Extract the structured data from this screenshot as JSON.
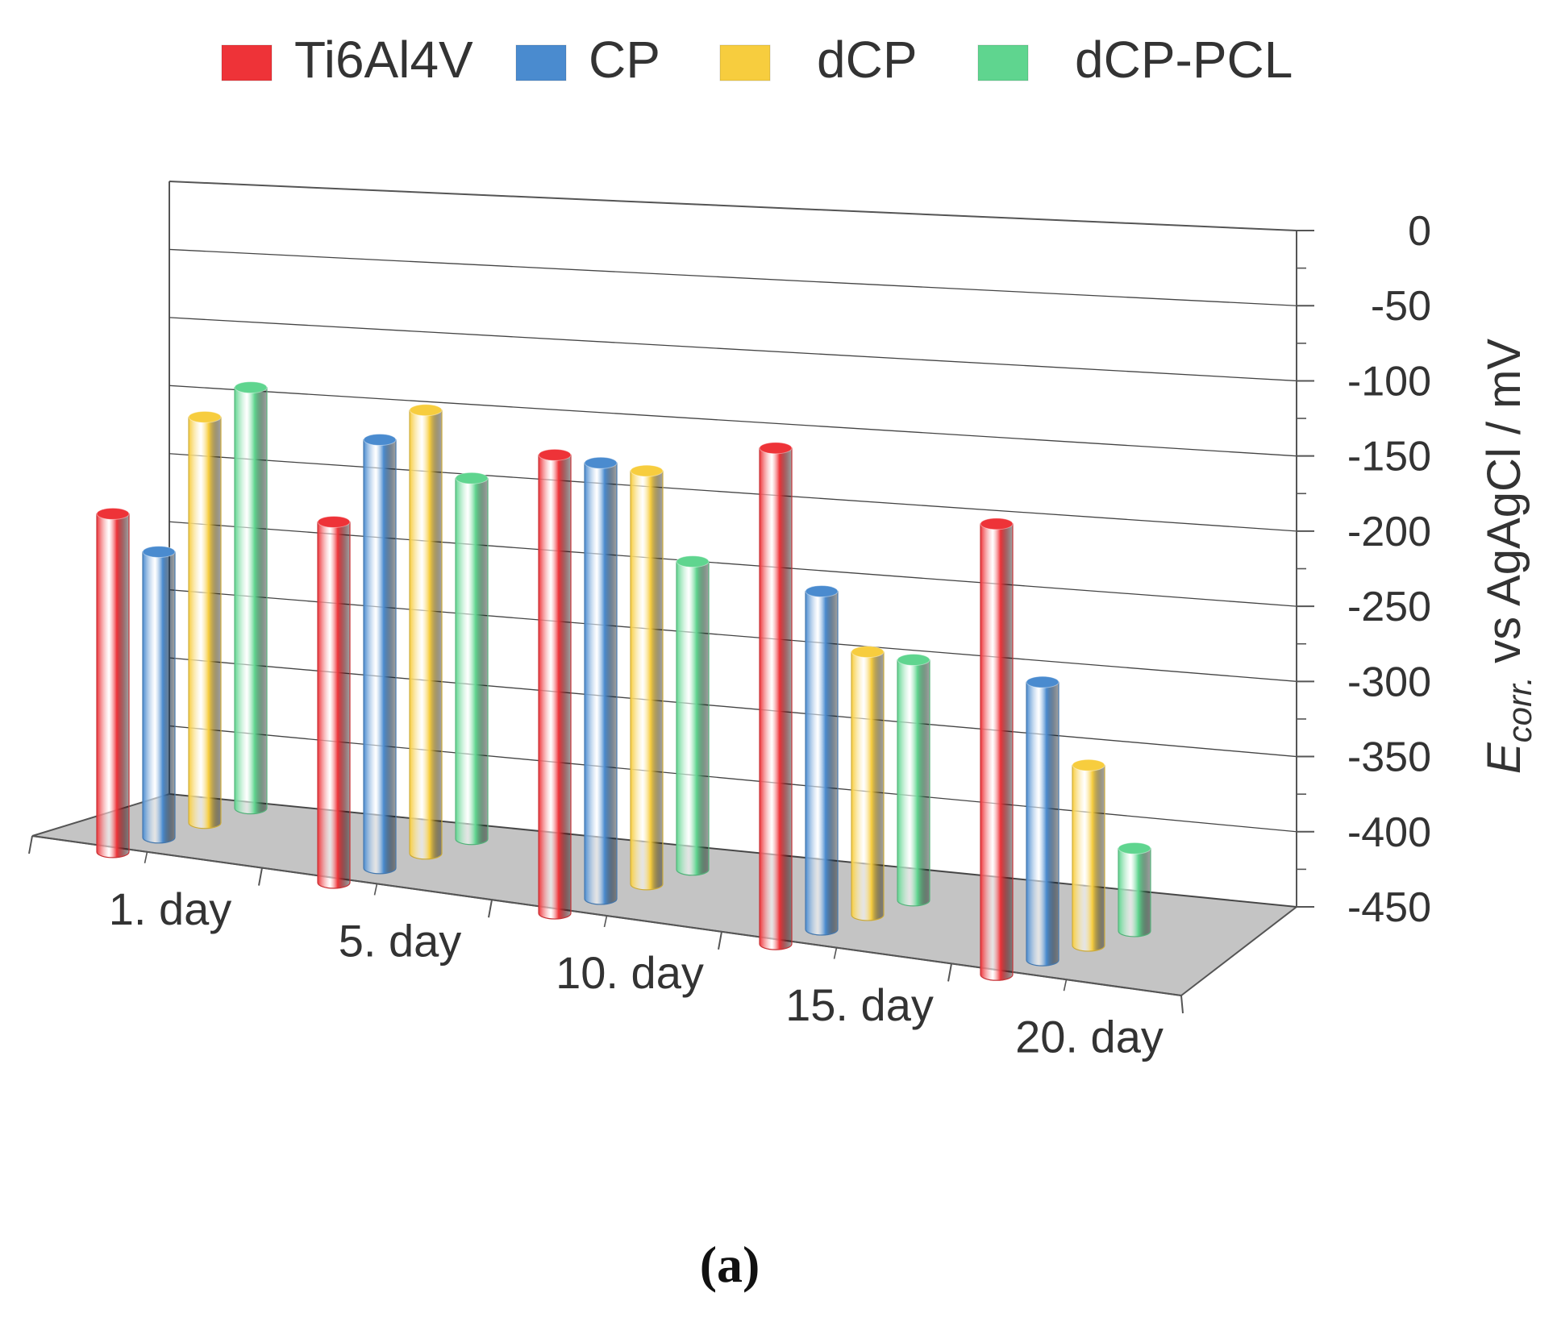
{
  "chart_data": {
    "type": "bar",
    "variant": "3d-cylinder",
    "categories": [
      "1. day",
      "5. day",
      "10. day",
      "15. day",
      "20. day"
    ],
    "series": [
      {
        "name": "Ti6Al4V",
        "color": "#ee3338",
        "values": [
          -225,
          -210,
          -145,
          -120,
          -150
        ]
      },
      {
        "name": "CP",
        "color": "#4a8bcf",
        "values": [
          -260,
          -165,
          -160,
          -225,
          -265
        ]
      },
      {
        "name": "dCP",
        "color": "#f7cd3e",
        "values": [
          -180,
          -155,
          -175,
          -275,
          -330
        ]
      },
      {
        "name": "dCP-PCL",
        "color": "#5fd58f",
        "values": [
          -170,
          -210,
          -245,
          -290,
          -395
        ]
      }
    ],
    "ylim": [
      -450,
      0
    ],
    "yticks": [
      "0",
      "-50",
      "-100",
      "-150",
      "-200",
      "-250",
      "-300",
      "-350",
      "-400",
      "-450"
    ],
    "ylabel": {
      "main": "E",
      "sub": "corr.",
      "rest": " vs AgAgCl / mV"
    },
    "xlabel": "",
    "grid": true,
    "legend_position": "top"
  },
  "caption": "(a)"
}
